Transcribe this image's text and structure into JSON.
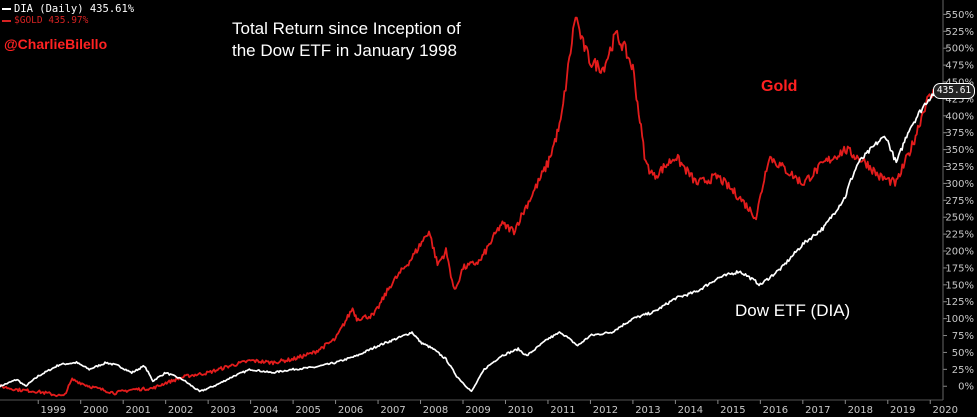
{
  "legend": {
    "dia": "DIA (Daily) 435.61%",
    "gold": "$GOLD 435.97%"
  },
  "handle": "@CharlieBilello",
  "title": "Total Return since Inception of the Dow ETF in January 1998",
  "last_value_badge": "435.61",
  "annotations": {
    "gold": "Gold",
    "dow": "Dow ETF (DIA)"
  },
  "colors": {
    "background": "#000000",
    "dia": "#ffffff",
    "gold": "#e31c1c",
    "axis_text": "#c8c8c8",
    "handle": "#ff2222"
  },
  "chart_data": {
    "type": "line",
    "title": "Total Return since Inception of the Dow ETF in January 1998",
    "xlabel": "",
    "ylabel": "",
    "y_unit": "%",
    "xlim": [
      1998.1,
      2020.3
    ],
    "ylim": [
      -10,
      555
    ],
    "y_axis_side": "right",
    "grid": false,
    "legend_position": "top-left",
    "x_ticks": [
      "1999",
      "2000",
      "2001",
      "2002",
      "2003",
      "2004",
      "2005",
      "2006",
      "2007",
      "2008",
      "2009",
      "2010",
      "2011",
      "2012",
      "2013",
      "2014",
      "2015",
      "2016",
      "2017",
      "2018",
      "2019",
      "2020"
    ],
    "y_ticks": [
      "0%",
      "25%",
      "50%",
      "75%",
      "100%",
      "125%",
      "150%",
      "175%",
      "200%",
      "225%",
      "250%",
      "275%",
      "300%",
      "325%",
      "350%",
      "375%",
      "400%",
      "425%",
      "450%",
      "475%",
      "500%",
      "525%",
      "550%"
    ],
    "series": [
      {
        "name": "DIA (Daily)",
        "color": "#ffffff",
        "x": [
          1998.1,
          1998.5,
          1998.7,
          1999.0,
          1999.5,
          1999.9,
          2000.2,
          2000.6,
          2000.9,
          2001.2,
          2001.5,
          2001.7,
          2002.0,
          2002.4,
          2002.8,
          2003.2,
          2003.6,
          2004.0,
          2004.5,
          2005.0,
          2005.5,
          2006.0,
          2006.5,
          2007.0,
          2007.5,
          2007.8,
          2008.0,
          2008.3,
          2008.6,
          2008.85,
          2009.0,
          2009.2,
          2009.5,
          2009.9,
          2010.3,
          2010.5,
          2011.0,
          2011.3,
          2011.7,
          2012.0,
          2012.5,
          2013.0,
          2013.5,
          2014.0,
          2014.5,
          2015.0,
          2015.5,
          2015.65,
          2016.0,
          2016.1,
          2016.5,
          2017.0,
          2017.5,
          2018.0,
          2018.1,
          2018.3,
          2018.75,
          2018.95,
          2019.2,
          2019.5,
          2019.9,
          2020.1
        ],
        "y": [
          0,
          10,
          0,
          15,
          32,
          35,
          25,
          35,
          30,
          20,
          30,
          8,
          20,
          10,
          -8,
          2,
          15,
          25,
          20,
          25,
          28,
          35,
          45,
          60,
          72,
          80,
          65,
          55,
          40,
          15,
          5,
          -8,
          25,
          45,
          55,
          45,
          70,
          80,
          60,
          75,
          80,
          100,
          110,
          130,
          140,
          160,
          170,
          165,
          150,
          155,
          175,
          210,
          235,
          280,
          300,
          330,
          360,
          370,
          330,
          380,
          420,
          435
        ]
      },
      {
        "name": "$GOLD",
        "color": "#e31c1c",
        "x": [
          1998.1,
          1998.5,
          1999.0,
          1999.6,
          1999.8,
          2000.2,
          2000.8,
          2001.2,
          2001.7,
          2002.0,
          2002.5,
          2003.0,
          2003.5,
          2004.0,
          2004.5,
          2005.0,
          2005.5,
          2006.0,
          2006.4,
          2006.5,
          2006.9,
          2007.3,
          2007.8,
          2008.2,
          2008.4,
          2008.6,
          2008.8,
          2009.0,
          2009.4,
          2009.9,
          2010.2,
          2010.6,
          2011.0,
          2011.3,
          2011.65,
          2011.8,
          2012.0,
          2012.3,
          2012.6,
          2012.8,
          2013.0,
          2013.3,
          2013.5,
          2014.0,
          2014.5,
          2015.0,
          2015.5,
          2015.9,
          2016.2,
          2016.6,
          2017.0,
          2017.5,
          2018.0,
          2018.5,
          2018.8,
          2019.2,
          2019.6,
          2019.9,
          2020.1
        ],
        "y": [
          0,
          -5,
          -8,
          -15,
          10,
          0,
          -10,
          -5,
          -3,
          5,
          15,
          20,
          30,
          38,
          35,
          40,
          50,
          70,
          115,
          100,
          105,
          150,
          190,
          230,
          180,
          200,
          140,
          175,
          185,
          240,
          230,
          280,
          330,
          390,
          550,
          510,
          480,
          470,
          520,
          500,
          470,
          330,
          310,
          340,
          300,
          310,
          280,
          250,
          340,
          320,
          300,
          330,
          350,
          330,
          310,
          300,
          360,
          420,
          435
        ]
      }
    ]
  }
}
